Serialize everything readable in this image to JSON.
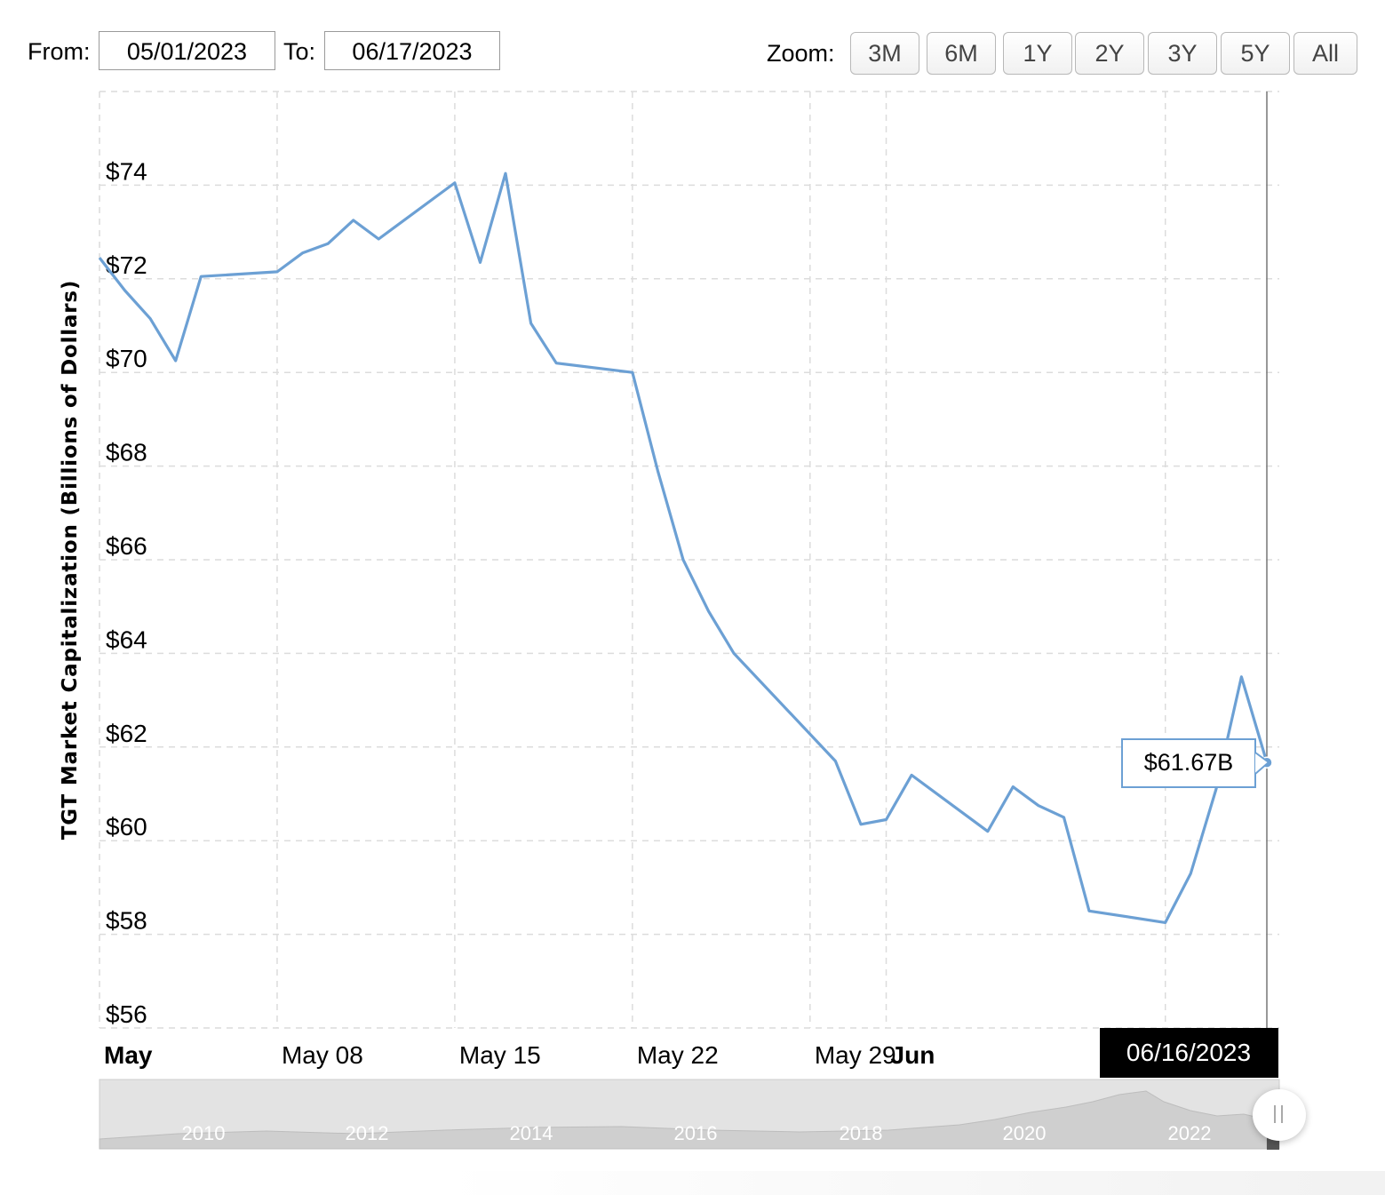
{
  "range": {
    "from_label": "From:",
    "from_value": "05/01/2023",
    "to_label": "To:",
    "to_value": "06/17/2023"
  },
  "zoom": {
    "label": "Zoom:",
    "buttons": [
      "3M",
      "6M",
      "1Y",
      "2Y",
      "3Y",
      "5Y",
      "All"
    ]
  },
  "colors": {
    "line": "#6ca0d4",
    "grid": "#dcdcdc",
    "navigator_fill": "#cfcfcf",
    "cursor_label_bg": "#000000"
  },
  "chart_data": {
    "type": "line",
    "title": "",
    "ylabel": "TGT Market Capitalization (Billions of Dollars)",
    "xlabel": "",
    "ylim": [
      56,
      76
    ],
    "yticks": [
      56,
      58,
      60,
      62,
      64,
      66,
      68,
      70,
      72,
      74
    ],
    "ytick_labels": [
      "$56",
      "$58",
      "$60",
      "$62",
      "$64",
      "$66",
      "$68",
      "$70",
      "$72",
      "$74"
    ],
    "xlim": [
      "2023-05-01",
      "2023-06-16"
    ],
    "xticks": [
      {
        "date": "2023-05-01",
        "label": "May",
        "bold": true
      },
      {
        "date": "2023-05-08",
        "label": "May 08",
        "bold": false
      },
      {
        "date": "2023-05-15",
        "label": "May 15",
        "bold": false
      },
      {
        "date": "2023-05-22",
        "label": "May 22",
        "bold": false
      },
      {
        "date": "2023-05-29",
        "label": "May 29",
        "bold": false
      },
      {
        "date": "2023-06-01",
        "label": "Jun",
        "bold": true
      }
    ],
    "grid": true,
    "series": [
      {
        "x": [
          "2023-05-01",
          "2023-05-02",
          "2023-05-03",
          "2023-05-04",
          "2023-05-05",
          "2023-05-08",
          "2023-05-09",
          "2023-05-10",
          "2023-05-11",
          "2023-05-12",
          "2023-05-15",
          "2023-05-16",
          "2023-05-17",
          "2023-05-18",
          "2023-05-19",
          "2023-05-22",
          "2023-05-23",
          "2023-05-24",
          "2023-05-25",
          "2023-05-26",
          "2023-05-30",
          "2023-05-31",
          "2023-06-01",
          "2023-06-02",
          "2023-06-05",
          "2023-06-06",
          "2023-06-07",
          "2023-06-08",
          "2023-06-09",
          "2023-06-12",
          "2023-06-13",
          "2023-06-14",
          "2023-06-15",
          "2023-06-16"
        ],
        "y": [
          72.45,
          71.75,
          71.15,
          70.25,
          72.05,
          72.15,
          72.55,
          72.75,
          73.25,
          72.85,
          74.05,
          72.35,
          74.25,
          71.05,
          70.2,
          70.0,
          67.9,
          66.0,
          64.9,
          64.0,
          61.7,
          60.35,
          60.45,
          61.4,
          60.2,
          61.15,
          60.75,
          60.5,
          58.5,
          58.25,
          59.3,
          61.1,
          63.5,
          61.67
        ]
      }
    ],
    "tooltip": {
      "value": "$61.67B",
      "date": "06/16/2023"
    },
    "navigator_years": [
      "2010",
      "2012",
      "2014",
      "2016",
      "2018",
      "2020",
      "2022"
    ]
  }
}
